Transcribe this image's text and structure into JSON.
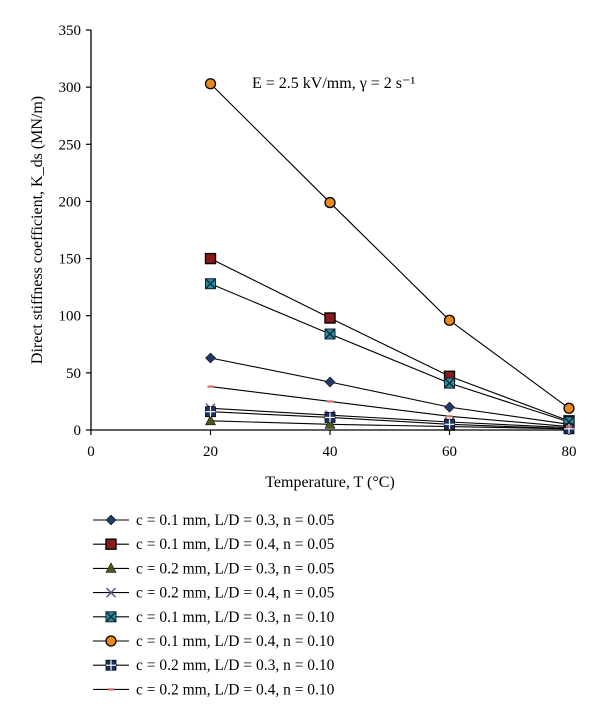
{
  "chart_data": {
    "type": "line",
    "xlabel": "Temperature, T (°C)",
    "ylabel": "Direct stiffness coefficient, K_ds (MN/m)",
    "annotation": "E = 2.5 kV/mm, γ = 2 s⁻¹",
    "xlim": [
      0,
      80
    ],
    "ylim": [
      0,
      350
    ],
    "xticks": [
      0,
      20,
      40,
      60,
      80
    ],
    "yticks": [
      0,
      50,
      100,
      150,
      200,
      250,
      300,
      350
    ],
    "x": [
      20,
      40,
      60,
      80
    ],
    "grid": false,
    "legend_position": "bottom",
    "series": [
      {
        "name": "c = 0.1 mm, L/D = 0.3, n = 0.05",
        "marker": "diamond",
        "color": "#1f3a6b",
        "values": [
          63,
          42,
          20,
          5
        ]
      },
      {
        "name": "c = 0.1 mm, L/D = 0.4, n = 0.05",
        "marker": "square",
        "color": "#8b1a1a",
        "values": [
          150,
          98,
          47,
          8
        ]
      },
      {
        "name": "c = 0.2 mm, L/D = 0.3, n = 0.05",
        "marker": "triangle",
        "color": "#4a5a1a",
        "values": [
          8,
          5,
          3,
          1
        ]
      },
      {
        "name": "c = 0.2 mm, L/D = 0.4, n = 0.05",
        "marker": "x",
        "color": "#6a4b8a",
        "values": [
          19,
          13,
          7,
          2
        ]
      },
      {
        "name": "c = 0.1 mm, L/D = 0.3, n = 0.10",
        "marker": "x-square",
        "color": "#2a8fa0",
        "values": [
          128,
          84,
          41,
          7
        ]
      },
      {
        "name": "c = 0.1 mm, L/D = 0.4, n = 0.10",
        "marker": "circle",
        "color": "#e8891a",
        "values": [
          303,
          199,
          96,
          19
        ]
      },
      {
        "name": "c = 0.2 mm, L/D = 0.3, n = 0.10",
        "marker": "plus-square",
        "color": "#1a2f66",
        "values": [
          16,
          11,
          5,
          1
        ]
      },
      {
        "name": "c = 0.2 mm, L/D = 0.4, n = 0.10",
        "marker": "dash",
        "color": "#d07060",
        "values": [
          38,
          25,
          12,
          3
        ]
      }
    ]
  }
}
